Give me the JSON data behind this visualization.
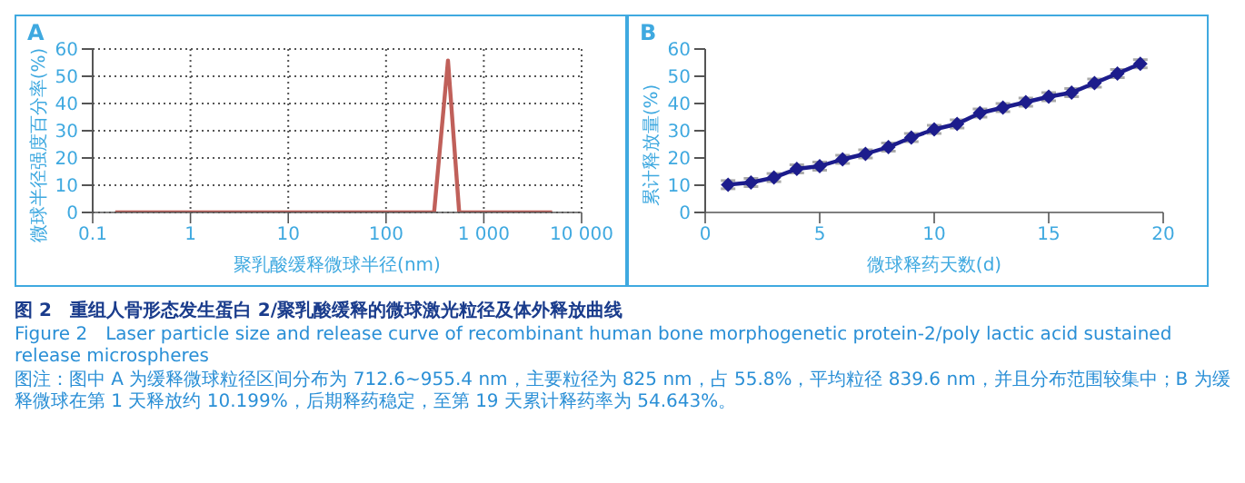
{
  "chart_data": [
    {
      "type": "line",
      "title": "A",
      "xlabel": "聚乳酸缓释微球半径(nm)",
      "ylabel": "微球半径强度百分率(%)",
      "log": "x",
      "grid": true,
      "marker": "none",
      "line_style": "solid",
      "xlim": [
        0.1,
        10000
      ],
      "xticks": [
        0.1,
        1,
        10,
        100,
        {
          "value": 1000,
          "label": "1 000"
        },
        {
          "value": 10000,
          "label": "10 000"
        }
      ],
      "ylim": [
        0,
        60
      ],
      "yticks": [
        0,
        10,
        20,
        30,
        40,
        50,
        60
      ],
      "series": [
        {
          "color": "#c0605a",
          "x": [
            0.17,
            1,
            10,
            100,
            310,
            430,
            560,
            1000,
            5000
          ],
          "values": [
            0,
            0,
            0,
            0,
            0,
            55.8,
            0,
            0,
            0
          ]
        }
      ],
      "annotations": [
        "图 2　重组人骨形态发生蛋白 2/聚乳酸缓释的微球激光粒径及体外释放曲线",
        "Figure 2　Laser particle size and release curve of recombinant human bone morphogenetic protein-2/poly lactic acid sustained release microspheres",
        "图注：图中 A 为缓释微球粒径区间分布为 712.6~955.4 nm，主要粒径为 825 nm，占 55.8%，平均粒径 839.6 nm，并且分布范围较集中；B 为缓释微球在第 1 天释放约 10.199%，后期释药稳定，至第 19 天累计释药率为 54.643%。"
      ]
    },
    {
      "type": "line",
      "title": "B",
      "xlabel": "微球释药天数(d)",
      "ylabel": "累计释放量(%)",
      "marker": "diamond",
      "line_style": "solid",
      "xlim": [
        0,
        20
      ],
      "xticks": [
        0,
        5,
        10,
        15,
        20
      ],
      "ylim": [
        0,
        60
      ],
      "yticks": [
        0,
        10,
        20,
        30,
        40,
        50,
        60
      ],
      "series": [
        {
          "color": "#1c1c8c",
          "x": [
            1,
            2,
            3,
            4,
            5,
            6,
            7,
            8,
            9,
            10,
            11,
            12,
            13,
            14,
            15,
            16,
            17,
            18,
            19
          ],
          "values": [
            10.2,
            11,
            12.8,
            16,
            17,
            19.5,
            21.5,
            24,
            27.5,
            30.5,
            32.5,
            36.5,
            38.5,
            40.5,
            42.5,
            44,
            47.5,
            51,
            54.6
          ],
          "errors": [
            1.5,
            1.5,
            1.5,
            1.5,
            1.5,
            1.5,
            1.5,
            1.5,
            1.5,
            1.5,
            1.5,
            1.5,
            1.5,
            1.5,
            1.5,
            1.5,
            1.5,
            1.5,
            1.5
          ]
        }
      ]
    }
  ]
}
